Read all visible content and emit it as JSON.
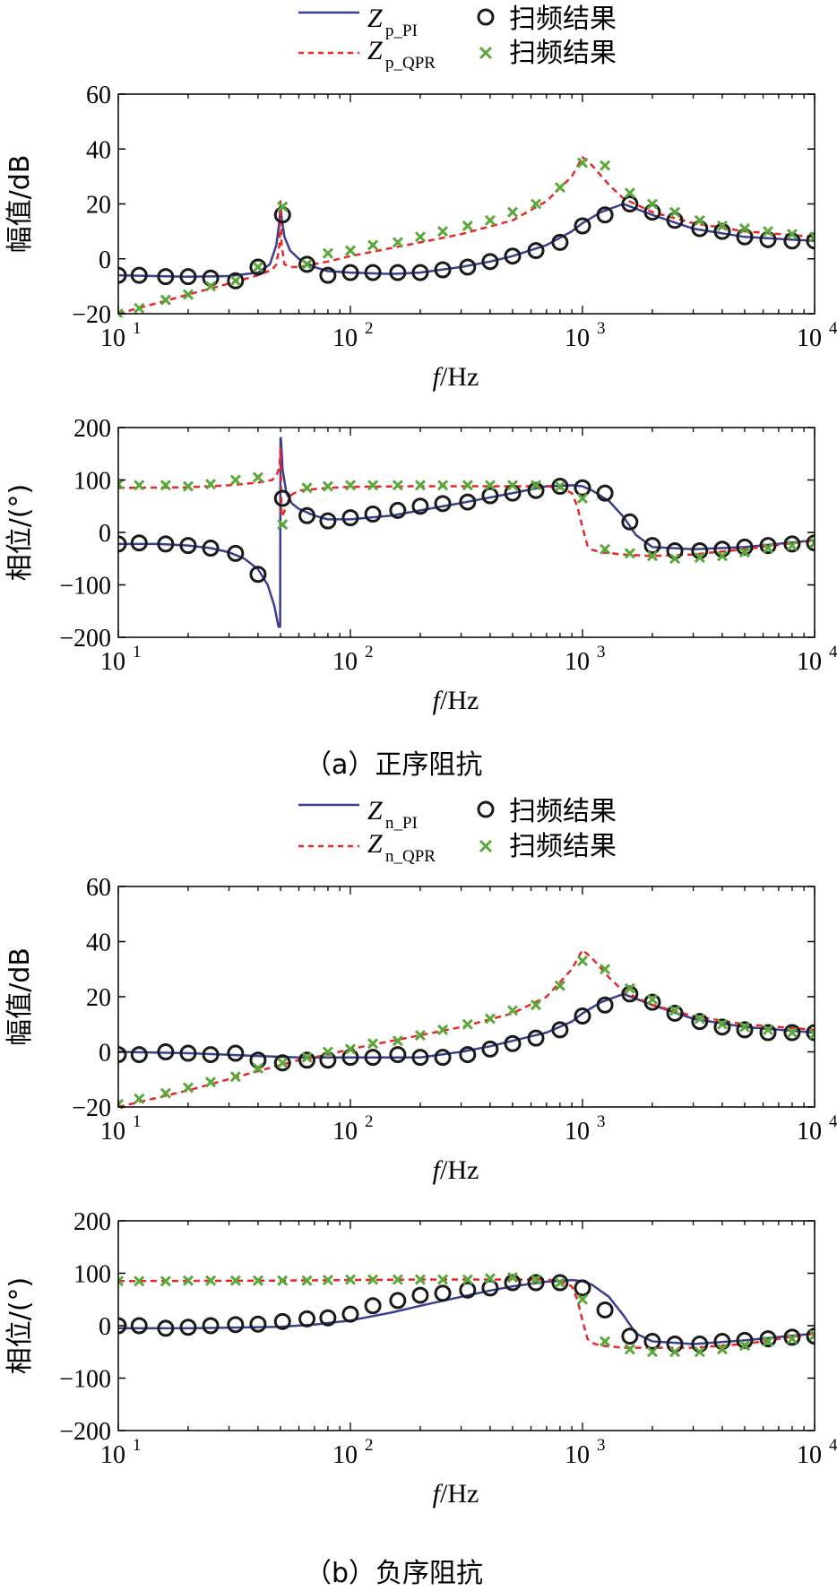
{
  "colors": {
    "pi": "#3b3f8f",
    "qpr": "#e8282a",
    "scan_pi": "#1a1a1a",
    "scan_qpr": "#5aa83a",
    "axis": "#000000"
  },
  "captions": {
    "a": "（a）正序阻抗",
    "b": "（b）负序阻抗"
  },
  "legends": [
    {
      "pi_label": "Z",
      "pi_sub": "p_PI",
      "qpr_label": "Z",
      "qpr_sub": "p_QPR",
      "scan_label": "扫频结果",
      "scan_label2": "扫频结果"
    },
    {
      "pi_label": "Z",
      "pi_sub": "n_PI",
      "qpr_label": "Z",
      "qpr_sub": "n_QPR",
      "scan_label": "扫频结果",
      "scan_label2": "扫频结果"
    }
  ],
  "chart_data": [
    {
      "id": "a-mag",
      "type": "line",
      "xscale": "log",
      "xlim": [
        10,
        10000
      ],
      "ylim": [
        -20,
        60
      ],
      "yticks": [
        -20,
        0,
        20,
        40,
        60
      ],
      "ylabel": "幅值/dB",
      "xlabel": "f/Hz",
      "xtick_labels": [
        "10",
        "10",
        "10",
        "10"
      ],
      "xtick_exps": [
        "1",
        "2",
        "3",
        "4"
      ],
      "series": [
        {
          "name": "Z_p_PI",
          "kind": "solid",
          "x": [
            10,
            20,
            30,
            40,
            45,
            48,
            49.5,
            50,
            50.5,
            52,
            55,
            60,
            70,
            80,
            100,
            150,
            200,
            300,
            400,
            500,
            700,
            900,
            1000,
            1200,
            1500,
            2000,
            3000,
            5000,
            10000
          ],
          "values": [
            -6,
            -6.5,
            -6.3,
            -5,
            -2,
            5,
            14,
            20,
            15,
            8,
            3,
            0,
            -3,
            -4.5,
            -5,
            -5.5,
            -5,
            -3,
            -1,
            1,
            5,
            10,
            13,
            17,
            20,
            16,
            11,
            8,
            6.5
          ]
        },
        {
          "name": "Z_p_QPR",
          "kind": "dashed",
          "x": [
            10,
            20,
            30,
            40,
            46,
            48,
            49.5,
            50,
            50.5,
            52,
            55,
            60,
            80,
            100,
            200,
            300,
            500,
            700,
            900,
            1000,
            1100,
            1300,
            1500,
            2000,
            3000,
            5000,
            10000
          ],
          "values": [
            -20,
            -13,
            -9,
            -6,
            -4,
            -2,
            5,
            21,
            5,
            -2,
            -3,
            -3,
            -1,
            1,
            6,
            9,
            14,
            21,
            30,
            37,
            34,
            27,
            22,
            17,
            13,
            10,
            8
          ]
        },
        {
          "name": "scan_PI",
          "kind": "circle",
          "x": [
            10,
            12.3,
            16,
            20,
            25,
            32,
            40,
            51,
            65,
            80,
            100,
            125,
            160,
            200,
            250,
            320,
            400,
            500,
            630,
            800,
            1000,
            1250,
            1600,
            2000,
            2500,
            3200,
            4000,
            5000,
            6300,
            8000,
            10000
          ],
          "values": [
            -6,
            -6,
            -6.5,
            -6.5,
            -7,
            -8,
            -3,
            16,
            -2,
            -6,
            -5,
            -5,
            -5,
            -5,
            -4,
            -3,
            -1,
            1,
            3,
            6,
            12,
            16,
            20,
            17,
            14,
            11,
            10,
            8,
            7,
            6.5,
            6.5
          ]
        },
        {
          "name": "scan_QPR",
          "kind": "cross",
          "x": [
            10,
            12.3,
            16,
            20,
            25,
            32,
            40,
            51,
            65,
            80,
            100,
            125,
            160,
            200,
            250,
            320,
            400,
            500,
            630,
            800,
            1000,
            1250,
            1600,
            2000,
            2500,
            3200,
            4000,
            5000,
            6300,
            8000,
            10000
          ],
          "values": [
            -20,
            -18,
            -15,
            -13,
            -10,
            -8,
            -3,
            19,
            -2,
            2,
            3,
            5,
            6,
            8,
            10,
            12,
            14,
            17,
            20,
            26,
            35,
            34,
            24,
            20,
            17,
            14,
            12,
            11,
            10,
            9,
            8
          ]
        }
      ]
    },
    {
      "id": "a-phase",
      "type": "line",
      "xscale": "log",
      "xlim": [
        10,
        10000
      ],
      "ylim": [
        -200,
        200
      ],
      "yticks": [
        -200,
        -100,
        0,
        100,
        200
      ],
      "ylabel": "相位/(°)",
      "xlabel": "f/Hz",
      "xtick_labels": [
        "10",
        "10",
        "10",
        "10"
      ],
      "xtick_exps": [
        "1",
        "2",
        "3",
        "4"
      ],
      "series": [
        {
          "name": "Z_p_PI",
          "kind": "solid",
          "x": [
            10,
            15,
            20,
            25,
            30,
            35,
            40,
            44,
            47,
            49,
            49.8,
            50,
            50.2,
            51,
            53,
            56,
            60,
            70,
            80,
            100,
            150,
            200,
            300,
            500,
            700,
            900,
            1000,
            1100,
            1300,
            1500,
            1700,
            2000,
            3000,
            5000,
            10000
          ],
          "values": [
            -22,
            -22,
            -25,
            -30,
            -38,
            -50,
            -70,
            -100,
            -140,
            -180,
            -180,
            180,
            180,
            120,
            75,
            55,
            45,
            32,
            25,
            25,
            32,
            42,
            56,
            75,
            88,
            90,
            88,
            80,
            60,
            30,
            -5,
            -28,
            -32,
            -28,
            -15
          ]
        },
        {
          "name": "Z_p_QPR",
          "kind": "dashed",
          "x": [
            10,
            20,
            30,
            40,
            46,
            48,
            49.5,
            50,
            50.5,
            52,
            55,
            60,
            80,
            100,
            200,
            400,
            700,
            800,
            900,
            950,
            1000,
            1050,
            1100,
            1200,
            1500,
            2000,
            3000,
            5000,
            10000
          ],
          "values": [
            85,
            86,
            90,
            95,
            100,
            108,
            125,
            160,
            30,
            40,
            70,
            80,
            85,
            87,
            88,
            88,
            88,
            85,
            75,
            50,
            10,
            -25,
            -33,
            -38,
            -42,
            -45,
            -42,
            -32,
            -15
          ]
        },
        {
          "name": "scan_PI",
          "kind": "circle",
          "x": [
            10,
            12.3,
            16,
            20,
            25,
            32,
            40,
            51,
            65,
            80,
            100,
            125,
            160,
            200,
            250,
            320,
            400,
            500,
            630,
            800,
            1000,
            1250,
            1600,
            2000,
            2500,
            3200,
            4000,
            5000,
            6300,
            8000,
            10000
          ],
          "values": [
            -22,
            -20,
            -22,
            -25,
            -30,
            -40,
            -80,
            65,
            32,
            22,
            28,
            35,
            42,
            50,
            55,
            58,
            70,
            75,
            80,
            88,
            85,
            75,
            20,
            -25,
            -35,
            -35,
            -32,
            -28,
            -25,
            -22,
            -20
          ]
        },
        {
          "name": "scan_QPR",
          "kind": "cross",
          "x": [
            10,
            12.3,
            16,
            20,
            25,
            32,
            40,
            51,
            65,
            80,
            100,
            125,
            160,
            200,
            250,
            320,
            400,
            500,
            630,
            800,
            1000,
            1250,
            1600,
            2000,
            2500,
            3200,
            4000,
            5000,
            6300,
            8000,
            10000
          ],
          "values": [
            92,
            90,
            90,
            88,
            92,
            100,
            105,
            15,
            85,
            88,
            90,
            90,
            90,
            90,
            90,
            90,
            90,
            90,
            90,
            88,
            65,
            -32,
            -40,
            -45,
            -50,
            -48,
            -45,
            -38,
            -30,
            -25,
            -20
          ]
        }
      ]
    },
    {
      "id": "b-mag",
      "type": "line",
      "xscale": "log",
      "xlim": [
        10,
        10000
      ],
      "ylim": [
        -20,
        60
      ],
      "yticks": [
        -20,
        0,
        20,
        40,
        60
      ],
      "ylabel": "幅值/dB",
      "xlabel": "f/Hz",
      "xtick_labels": [
        "10",
        "10",
        "10",
        "10"
      ],
      "xtick_exps": [
        "1",
        "2",
        "3",
        "4"
      ],
      "series": [
        {
          "name": "Z_n_PI",
          "kind": "solid",
          "x": [
            10,
            20,
            40,
            60,
            100,
            150,
            200,
            300,
            400,
            500,
            700,
            900,
            1000,
            1200,
            1500,
            2000,
            3000,
            5000,
            10000
          ],
          "values": [
            0,
            -0.5,
            -1.5,
            -2,
            -2,
            -2,
            -2,
            0,
            2,
            4,
            7,
            11,
            14,
            18,
            21,
            17,
            12,
            9,
            7
          ]
        },
        {
          "name": "Z_n_QPR",
          "kind": "dashed",
          "x": [
            10,
            20,
            40,
            60,
            80,
            100,
            200,
            300,
            500,
            700,
            900,
            1000,
            1100,
            1300,
            1500,
            2000,
            3000,
            5000,
            10000
          ],
          "values": [
            -20,
            -14,
            -7,
            -3,
            -1,
            1,
            6,
            9,
            14,
            20,
            30,
            37,
            34,
            27,
            22,
            17,
            13,
            10,
            8
          ]
        },
        {
          "name": "scan_PI",
          "kind": "circle",
          "x": [
            10,
            12.3,
            16,
            20,
            25,
            32,
            40,
            51,
            65,
            80,
            100,
            125,
            160,
            200,
            250,
            320,
            400,
            500,
            630,
            800,
            1000,
            1250,
            1600,
            2000,
            2500,
            3200,
            4000,
            5000,
            6300,
            8000,
            10000
          ],
          "values": [
            -1,
            -1,
            0,
            -0.5,
            -1,
            -0.5,
            -3,
            -4,
            -3,
            -3,
            -2,
            -2,
            -1,
            -2,
            -2,
            -1,
            1,
            3,
            5,
            8,
            13,
            17,
            21,
            18,
            14,
            11,
            9,
            8,
            7,
            7,
            7
          ]
        },
        {
          "name": "scan_QPR",
          "kind": "cross",
          "x": [
            10,
            12.3,
            16,
            20,
            25,
            32,
            40,
            51,
            65,
            80,
            100,
            125,
            160,
            200,
            250,
            320,
            400,
            500,
            630,
            800,
            1000,
            1250,
            1600,
            2000,
            2500,
            3200,
            4000,
            5000,
            6300,
            8000,
            10000
          ],
          "values": [
            -19,
            -17,
            -15,
            -13,
            -11,
            -9,
            -6,
            -4,
            -2,
            0,
            1,
            3,
            4,
            6,
            8,
            10,
            12,
            15,
            17,
            24,
            33,
            30,
            23,
            19,
            15,
            12,
            10,
            9,
            8,
            7,
            6.5
          ]
        }
      ]
    },
    {
      "id": "b-phase",
      "type": "line",
      "xscale": "log",
      "xlim": [
        10,
        10000
      ],
      "ylim": [
        -200,
        200
      ],
      "yticks": [
        -200,
        -100,
        0,
        100,
        200
      ],
      "ylabel": "相位/(°)",
      "xlabel": "f/Hz",
      "xtick_labels": [
        "10",
        "10",
        "10",
        "10"
      ],
      "xtick_exps": [
        "1",
        "2",
        "3",
        "4"
      ],
      "series": [
        {
          "name": "Z_n_PI",
          "kind": "solid",
          "x": [
            10,
            20,
            30,
            50,
            70,
            100,
            150,
            200,
            300,
            400,
            500,
            700,
            900,
            1000,
            1100,
            1300,
            1500,
            1700,
            2000,
            3000,
            5000,
            10000
          ],
          "values": [
            -5,
            -5,
            -4,
            -2,
            2,
            10,
            25,
            38,
            55,
            67,
            75,
            84,
            87,
            85,
            78,
            55,
            20,
            -15,
            -30,
            -35,
            -28,
            -15
          ]
        },
        {
          "name": "Z_n_QPR",
          "kind": "dashed",
          "x": [
            10,
            50,
            100,
            200,
            400,
            700,
            800,
            900,
            950,
            1000,
            1050,
            1100,
            1200,
            1500,
            2000,
            3000,
            5000,
            10000
          ],
          "values": [
            85,
            86,
            87,
            88,
            88,
            88,
            85,
            75,
            50,
            10,
            -25,
            -33,
            -38,
            -42,
            -42,
            -42,
            -35,
            -15
          ]
        },
        {
          "name": "scan_PI",
          "kind": "circle",
          "x": [
            10,
            12.3,
            16,
            20,
            25,
            32,
            40,
            51,
            65,
            80,
            100,
            125,
            160,
            200,
            250,
            320,
            400,
            500,
            630,
            800,
            1000,
            1250,
            1600,
            2000,
            2500,
            3200,
            4000,
            5000,
            6300,
            8000,
            10000
          ],
          "values": [
            0,
            0,
            -5,
            -3,
            0,
            2,
            3,
            8,
            13,
            15,
            22,
            38,
            48,
            58,
            62,
            68,
            72,
            82,
            82,
            82,
            72,
            30,
            -20,
            -30,
            -35,
            -35,
            -30,
            -28,
            -25,
            -22,
            -20
          ]
        },
        {
          "name": "scan_QPR",
          "kind": "cross",
          "x": [
            10,
            12.3,
            16,
            20,
            25,
            32,
            40,
            51,
            65,
            80,
            100,
            125,
            160,
            200,
            250,
            320,
            400,
            500,
            630,
            800,
            1000,
            1250,
            1600,
            2000,
            2500,
            3200,
            4000,
            5000,
            6300,
            8000,
            10000
          ],
          "values": [
            85,
            85,
            85,
            86,
            86,
            86,
            86,
            86,
            86,
            87,
            88,
            88,
            88,
            88,
            88,
            88,
            90,
            92,
            88,
            82,
            50,
            -30,
            -45,
            -50,
            -50,
            -50,
            -45,
            -38,
            -30,
            -25,
            -18
          ]
        }
      ]
    }
  ]
}
